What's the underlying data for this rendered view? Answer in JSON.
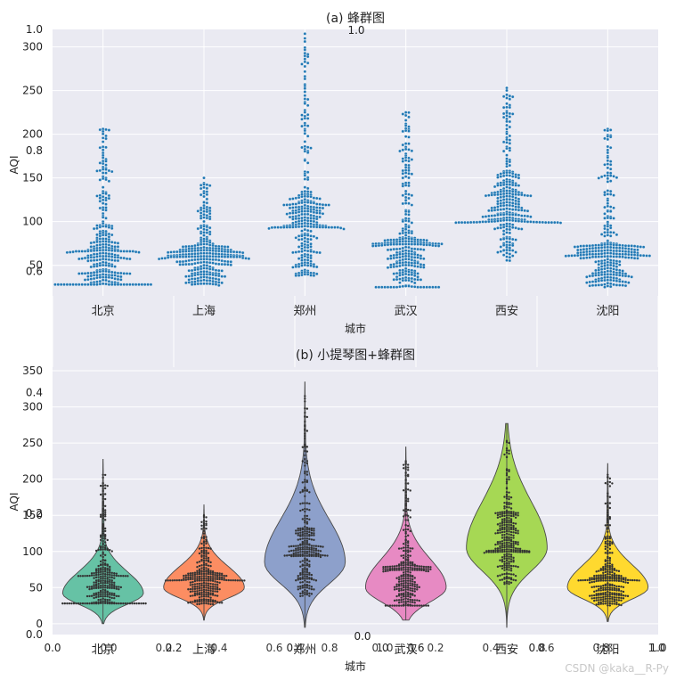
{
  "watermark": "CSDN @kaka__R-Py",
  "colors": {
    "panel_bg": "#eaeaf2",
    "grid": "#ffffff",
    "swarm_dot": "#1f77b4",
    "violin_dot": "#333333",
    "violin_edge": "#4a4a4a"
  },
  "background_axes": {
    "yticks": [
      "0.0",
      "0.2",
      "0.4",
      "0.6",
      "0.8",
      "1.0"
    ],
    "xticks": [
      "0.0",
      "0.2",
      "0.4",
      "0.6",
      "0.8",
      "1.0"
    ]
  },
  "inner_axes_ticks": {
    "left_x": [
      "0.0",
      "0.2",
      "0.4",
      "0.6",
      "0.8",
      "1.0"
    ],
    "right_x": [
      "0.0",
      "0.2",
      "0.4",
      "0.6",
      "0.8",
      "1.0"
    ],
    "left_y_top": "1.0",
    "bottom_center_y": "0.0"
  },
  "chart_data": [
    {
      "type": "scatter",
      "subtype": "swarm",
      "title": "(a) 蜂群图",
      "xlabel": "城市",
      "ylabel": "AQI",
      "categories": [
        "北京",
        "上海",
        "郑州",
        "武汉",
        "西安",
        "沈阳"
      ],
      "yticks": [
        50,
        100,
        150,
        200,
        250,
        300
      ],
      "ylim": [
        15,
        320
      ],
      "grid": true,
      "distributions": [
        {
          "min": 28,
          "max": 206,
          "median": 62,
          "mode": 42,
          "points": 300
        },
        {
          "min": 25,
          "max": 150,
          "median": 58,
          "mode": 50,
          "points": 300
        },
        {
          "min": 25,
          "max": 315,
          "median": 92,
          "mode": 85,
          "points": 300
        },
        {
          "min": 25,
          "max": 225,
          "median": 70,
          "mode": 50,
          "points": 300
        },
        {
          "min": 27,
          "max": 253,
          "median": 100,
          "mode": 105,
          "points": 300
        },
        {
          "min": 22,
          "max": 206,
          "median": 58,
          "mode": 50,
          "points": 300
        }
      ]
    },
    {
      "type": "scatter",
      "subtype": "violin+swarm",
      "title": "(b) 小提琴图+蜂群图",
      "xlabel": "城市",
      "ylabel": "AQI",
      "categories": [
        "北京",
        "上海",
        "郑州",
        "武汉",
        "西安",
        "沈阳"
      ],
      "yticks": [
        0,
        50,
        100,
        150,
        200,
        250,
        300,
        350
      ],
      "ylim": [
        -15,
        355
      ],
      "grid": true,
      "violin_colors": [
        "#66c2a5",
        "#fc8d62",
        "#8da0cb",
        "#e78ac3",
        "#a6d854",
        "#ffd92f"
      ],
      "violin_extent": [
        {
          "min": 0,
          "max": 228
        },
        {
          "min": 5,
          "max": 165
        },
        {
          "min": -5,
          "max": 335
        },
        {
          "min": 5,
          "max": 245
        },
        {
          "min": -5,
          "max": 277
        },
        {
          "min": 3,
          "max": 222
        }
      ]
    }
  ]
}
